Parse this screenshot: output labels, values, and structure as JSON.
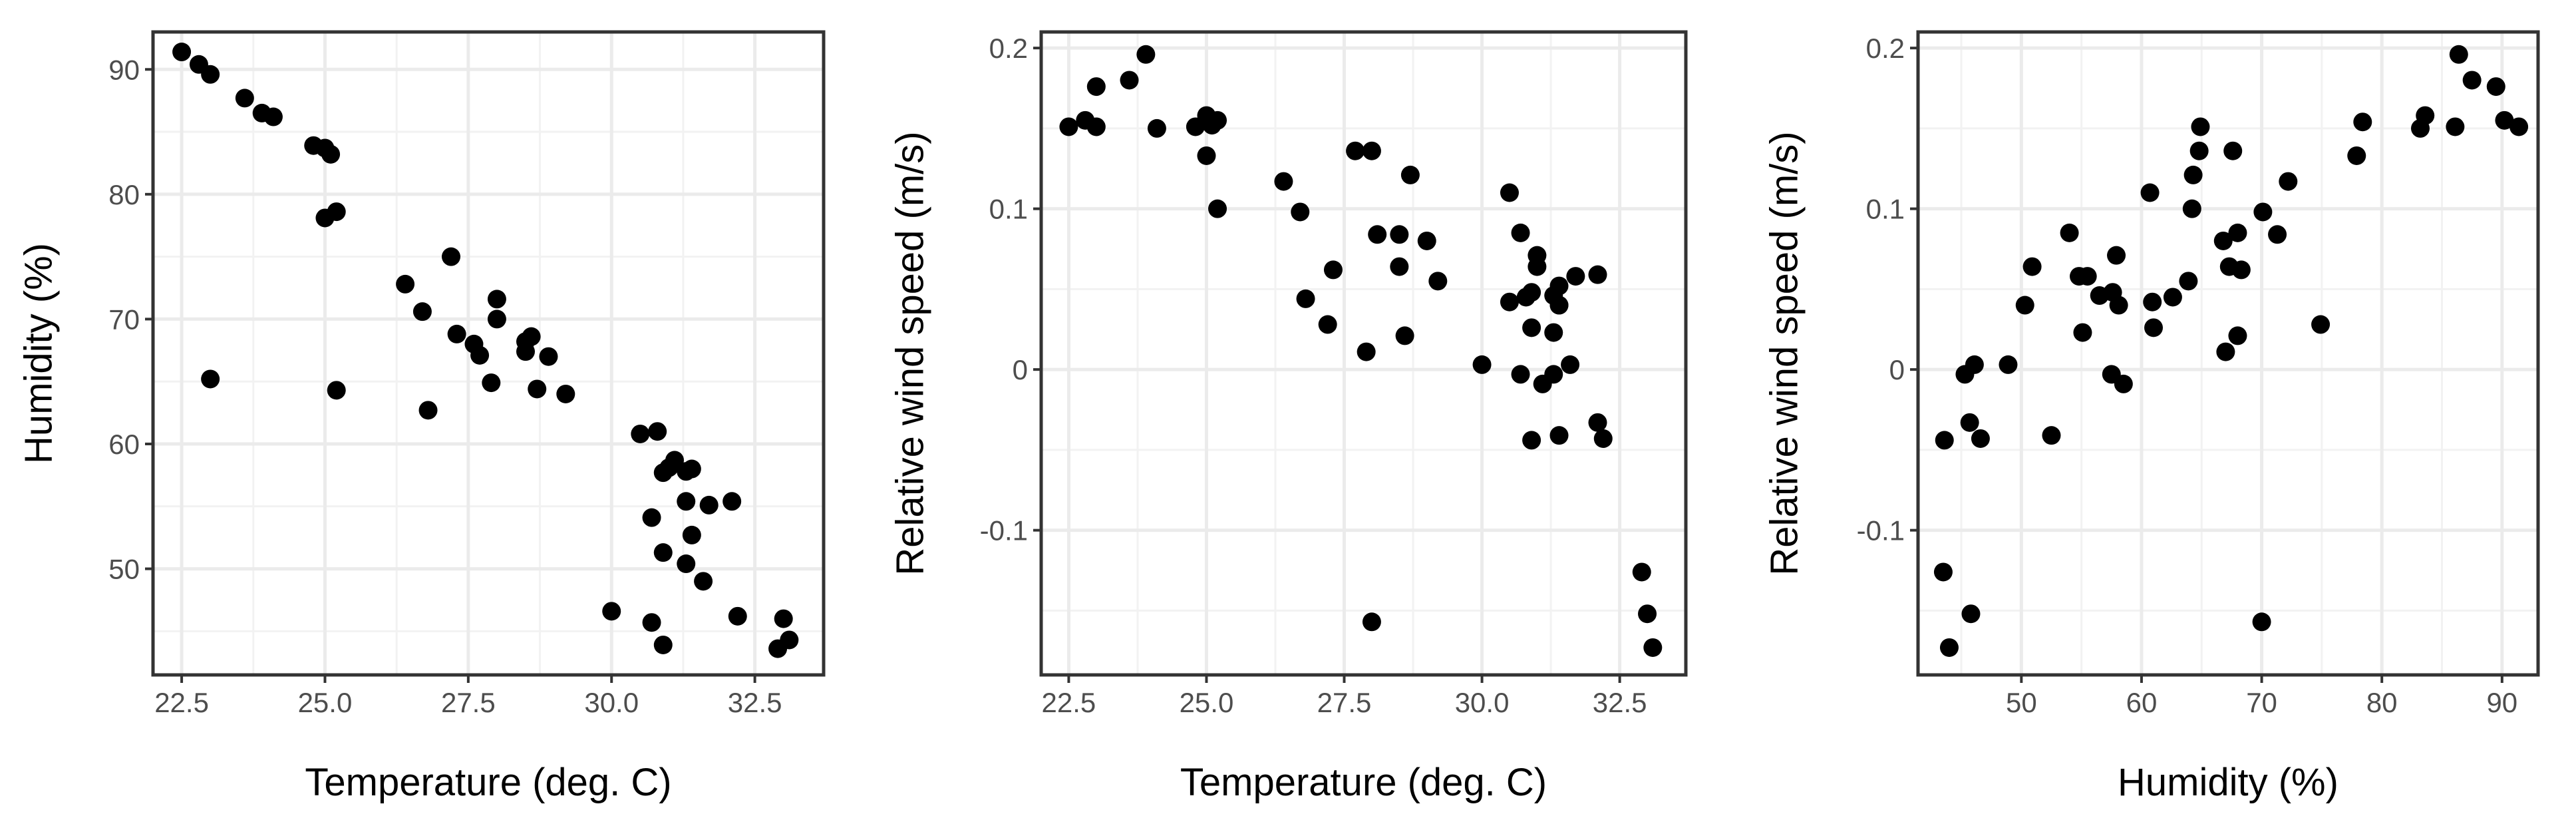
{
  "chart_data": [
    {
      "type": "scatter",
      "xlabel": "Temperature (deg. C)",
      "ylabel": "Humidity (%)",
      "xlim": [
        22.0,
        33.7
      ],
      "ylim": [
        41.5,
        93.0
      ],
      "xticks": [
        22.5,
        25.0,
        27.5,
        30.0,
        32.5
      ],
      "xtick_labels": [
        "22.5",
        "25.0",
        "27.5",
        "30.0",
        "32.5"
      ],
      "yticks": [
        50,
        60,
        70,
        80,
        90
      ],
      "ytick_labels": [
        "50",
        "60",
        "70",
        "80",
        "90"
      ],
      "grid": true,
      "point_color": "#000000",
      "points": [
        [
          22.5,
          91.4
        ],
        [
          22.8,
          90.4
        ],
        [
          23.0,
          89.6
        ],
        [
          23.6,
          87.7
        ],
        [
          23.9,
          86.5
        ],
        [
          24.1,
          86.2
        ],
        [
          24.8,
          83.9
        ],
        [
          25.0,
          83.7
        ],
        [
          25.1,
          83.2
        ],
        [
          25.0,
          78.1
        ],
        [
          25.2,
          78.6
        ],
        [
          23.0,
          65.2
        ],
        [
          25.2,
          64.3
        ],
        [
          26.4,
          72.8
        ],
        [
          26.7,
          70.6
        ],
        [
          27.2,
          75.0
        ],
        [
          27.3,
          68.8
        ],
        [
          27.6,
          68.0
        ],
        [
          27.7,
          67.1
        ],
        [
          28.0,
          71.6
        ],
        [
          28.0,
          70.0
        ],
        [
          27.9,
          64.9
        ],
        [
          28.5,
          68.2
        ],
        [
          28.6,
          68.6
        ],
        [
          28.5,
          67.4
        ],
        [
          28.9,
          67.0
        ],
        [
          28.7,
          64.4
        ],
        [
          29.2,
          64.0
        ],
        [
          26.8,
          62.7
        ],
        [
          30.5,
          60.8
        ],
        [
          30.8,
          61.0
        ],
        [
          30.9,
          57.7
        ],
        [
          31.0,
          58.1
        ],
        [
          31.1,
          58.7
        ],
        [
          31.3,
          57.8
        ],
        [
          31.4,
          58.0
        ],
        [
          30.7,
          54.1
        ],
        [
          31.3,
          55.4
        ],
        [
          31.7,
          55.1
        ],
        [
          32.1,
          55.4
        ],
        [
          31.4,
          52.7
        ],
        [
          30.9,
          51.3
        ],
        [
          31.3,
          50.4
        ],
        [
          31.6,
          49.0
        ],
        [
          30.0,
          46.6
        ],
        [
          30.7,
          45.7
        ],
        [
          30.9,
          43.9
        ],
        [
          32.2,
          46.2
        ],
        [
          33.0,
          46.0
        ],
        [
          32.9,
          43.6
        ],
        [
          33.1,
          44.3
        ]
      ]
    },
    {
      "type": "scatter",
      "xlabel": "Temperature (deg. C)",
      "ylabel": "Relative wind speed (m/s)",
      "xlim": [
        22.0,
        33.7
      ],
      "ylim": [
        -0.19,
        0.21
      ],
      "xticks": [
        22.5,
        25.0,
        27.5,
        30.0,
        32.5
      ],
      "xtick_labels": [
        "22.5",
        "25.0",
        "27.5",
        "30.0",
        "32.5"
      ],
      "yticks": [
        -0.1,
        0.0,
        0.1,
        0.2
      ],
      "ytick_labels": [
        "-0.1",
        "0",
        "0.1",
        "0.2"
      ],
      "grid": true,
      "point_color": "#000000",
      "points": [
        [
          22.5,
          0.151
        ],
        [
          22.8,
          0.155
        ],
        [
          23.0,
          0.151
        ],
        [
          23.0,
          0.176
        ],
        [
          23.6,
          0.18
        ],
        [
          23.9,
          0.196
        ],
        [
          24.1,
          0.15
        ],
        [
          24.8,
          0.151
        ],
        [
          25.0,
          0.158
        ],
        [
          25.1,
          0.152
        ],
        [
          25.2,
          0.155
        ],
        [
          25.0,
          0.133
        ],
        [
          25.2,
          0.1
        ],
        [
          26.4,
          0.117
        ],
        [
          26.7,
          0.098
        ],
        [
          26.8,
          0.044
        ],
        [
          27.2,
          0.028
        ],
        [
          27.3,
          0.062
        ],
        [
          27.7,
          0.136
        ],
        [
          28.0,
          0.136
        ],
        [
          27.9,
          0.011
        ],
        [
          28.0,
          -0.157
        ],
        [
          28.1,
          0.084
        ],
        [
          28.5,
          0.084
        ],
        [
          28.5,
          0.064
        ],
        [
          28.6,
          0.021
        ],
        [
          28.7,
          0.121
        ],
        [
          29.0,
          0.08
        ],
        [
          29.2,
          0.055
        ],
        [
          30.0,
          0.003
        ],
        [
          30.5,
          0.11
        ],
        [
          30.5,
          0.042
        ],
        [
          30.7,
          0.085
        ],
        [
          30.8,
          0.045
        ],
        [
          30.9,
          0.026
        ],
        [
          30.7,
          -0.003
        ],
        [
          30.9,
          -0.044
        ],
        [
          30.9,
          0.048
        ],
        [
          31.0,
          0.064
        ],
        [
          31.0,
          0.071
        ],
        [
          31.1,
          -0.009
        ],
        [
          31.3,
          -0.003
        ],
        [
          31.3,
          0.023
        ],
        [
          31.3,
          0.046
        ],
        [
          31.4,
          0.04
        ],
        [
          31.4,
          0.04
        ],
        [
          31.4,
          0.052
        ],
        [
          31.4,
          -0.041
        ],
        [
          31.6,
          0.003
        ],
        [
          31.7,
          0.058
        ],
        [
          32.1,
          0.059
        ],
        [
          32.1,
          -0.033
        ],
        [
          32.2,
          -0.043
        ],
        [
          32.9,
          -0.126
        ],
        [
          33.0,
          -0.152
        ],
        [
          33.1,
          -0.173
        ]
      ]
    },
    {
      "type": "scatter",
      "xlabel": "Humidity (%)",
      "ylabel": "Relative wind speed (m/s)",
      "xlim": [
        41.4,
        93.0
      ],
      "ylim": [
        -0.19,
        0.21
      ],
      "xticks": [
        50,
        60,
        70,
        80,
        90
      ],
      "xtick_labels": [
        "50",
        "60",
        "70",
        "80",
        "90"
      ],
      "yticks": [
        -0.1,
        0.0,
        0.1,
        0.2
      ],
      "ytick_labels": [
        "-0.1",
        "0",
        "0.1",
        "0.2"
      ],
      "grid": true,
      "point_color": "#000000",
      "points": [
        [
          43.5,
          -0.126
        ],
        [
          43.6,
          -0.044
        ],
        [
          44.0,
          -0.173
        ],
        [
          45.3,
          -0.003
        ],
        [
          45.7,
          -0.033
        ],
        [
          45.8,
          -0.152
        ],
        [
          46.1,
          0.003
        ],
        [
          46.6,
          -0.043
        ],
        [
          48.9,
          0.003
        ],
        [
          50.3,
          0.04
        ],
        [
          50.9,
          0.064
        ],
        [
          52.5,
          -0.041
        ],
        [
          54.0,
          0.085
        ],
        [
          54.8,
          0.058
        ],
        [
          55.1,
          0.023
        ],
        [
          55.5,
          0.058
        ],
        [
          56.5,
          0.046
        ],
        [
          57.5,
          -0.003
        ],
        [
          57.6,
          0.048
        ],
        [
          57.9,
          0.071
        ],
        [
          58.1,
          0.04
        ],
        [
          58.5,
          -0.009
        ],
        [
          60.7,
          0.11
        ],
        [
          60.9,
          0.042
        ],
        [
          61.0,
          0.026
        ],
        [
          62.6,
          0.045
        ],
        [
          63.9,
          0.055
        ],
        [
          64.2,
          0.1
        ],
        [
          64.3,
          0.121
        ],
        [
          64.8,
          0.136
        ],
        [
          64.9,
          0.151
        ],
        [
          66.8,
          0.08
        ],
        [
          67.0,
          0.011
        ],
        [
          67.3,
          0.064
        ],
        [
          67.6,
          0.136
        ],
        [
          68.0,
          0.085
        ],
        [
          68.0,
          0.021
        ],
        [
          68.3,
          0.062
        ],
        [
          70.0,
          -0.157
        ],
        [
          70.1,
          0.098
        ],
        [
          71.3,
          0.084
        ],
        [
          72.2,
          0.117
        ],
        [
          74.9,
          0.028
        ],
        [
          77.9,
          0.133
        ],
        [
          78.4,
          0.154
        ],
        [
          83.2,
          0.15
        ],
        [
          83.6,
          0.158
        ],
        [
          86.1,
          0.151
        ],
        [
          86.4,
          0.196
        ],
        [
          87.5,
          0.18
        ],
        [
          89.5,
          0.176
        ],
        [
          90.2,
          0.155
        ],
        [
          91.4,
          0.151
        ]
      ]
    }
  ]
}
